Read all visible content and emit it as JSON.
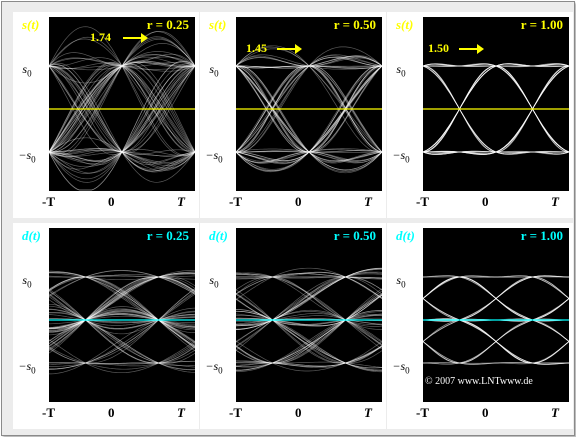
{
  "colors": {
    "yellow": "#ffff00",
    "cyan": "#00ffff",
    "trace": "#ffffff",
    "background": "#000000"
  },
  "axis": {
    "y_pos": "s",
    "y_neg": "−s",
    "y_sub": "0",
    "x_left": "-T",
    "x_mid": "0",
    "x_right": "T"
  },
  "panels": [
    {
      "title": "s(t)",
      "r_label": "r = 0.25",
      "peak_label": "1.74",
      "peak_value": 1.74,
      "rolloff": 0.25,
      "signal": "s"
    },
    {
      "title": "s(t)",
      "r_label": "r = 0.50",
      "peak_label": "1.45",
      "peak_value": 1.45,
      "rolloff": 0.5,
      "signal": "s"
    },
    {
      "title": "s(t)",
      "r_label": "r = 1.00",
      "peak_label": "1.50",
      "peak_value": 1.5,
      "rolloff": 1.0,
      "signal": "s"
    },
    {
      "title": "d(t)",
      "r_label": "r = 0.25",
      "rolloff": 0.25,
      "signal": "d"
    },
    {
      "title": "d(t)",
      "r_label": "r = 0.50",
      "rolloff": 0.5,
      "signal": "d"
    },
    {
      "title": "d(t)",
      "r_label": "r = 1.00",
      "rolloff": 1.0,
      "signal": "d"
    }
  ],
  "copyright": "© 2007 www.LNTwww.de"
}
